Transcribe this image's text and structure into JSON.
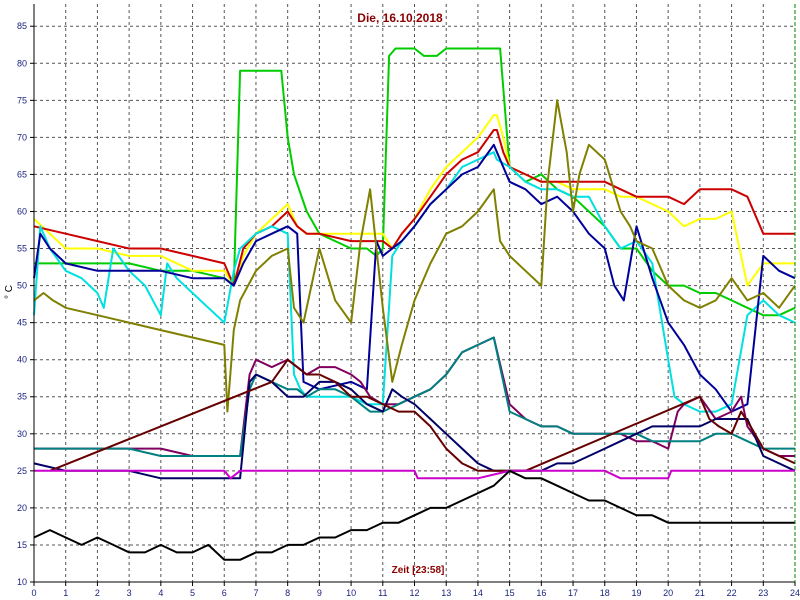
{
  "chart_data": {
    "type": "line",
    "title": "Die, 16.10.2018",
    "xlabel": "Zeit [23:58]",
    "ylabel": "° C",
    "xlim": [
      0,
      24
    ],
    "ylim": [
      10,
      88
    ],
    "xticks": [
      "0",
      "1",
      "2",
      "3",
      "4",
      "5",
      "6",
      "7",
      "8",
      "9",
      "10",
      "11",
      "12",
      "13",
      "14",
      "15",
      "16",
      "17",
      "18",
      "19",
      "20",
      "21",
      "22",
      "23",
      "24"
    ],
    "yticks": [
      "10",
      "15",
      "20",
      "25",
      "30",
      "35",
      "40",
      "45",
      "50",
      "55",
      "60",
      "65",
      "70",
      "75",
      "80",
      "85"
    ],
    "grid": true,
    "series": [
      {
        "color": "#00cc00",
        "x": [
          0,
          1,
          2,
          3,
          4,
          5,
          6,
          6.3,
          6.5,
          7,
          7.5,
          7.8,
          8,
          8.2,
          8.6,
          9,
          9.5,
          10,
          10.5,
          10.8,
          11,
          11.2,
          11.4,
          11.6,
          11.8,
          12,
          12.3,
          12.7,
          13,
          13.5,
          14,
          14.5,
          14.7,
          15,
          15.5,
          16,
          16.5,
          17,
          17.5,
          18,
          18.5,
          19,
          19.5,
          20,
          20.5,
          21,
          21.5,
          22,
          22.5,
          23,
          23.5,
          24
        ],
        "y": [
          53,
          53,
          53,
          53,
          52,
          52,
          51,
          50,
          79,
          79,
          79,
          79,
          70,
          65,
          60,
          57,
          56,
          55,
          55,
          54,
          55,
          81,
          82,
          82,
          82,
          82,
          81,
          81,
          82,
          82,
          82,
          82,
          82,
          66,
          64,
          65,
          63,
          62,
          60,
          58,
          55,
          55,
          52,
          50,
          50,
          49,
          49,
          48,
          47,
          46,
          46,
          47
        ]
      },
      {
        "color": "#ffff00",
        "x": [
          0,
          1,
          2,
          3,
          4,
          5,
          6,
          6.3,
          6.6,
          7,
          7.5,
          8,
          8.3,
          8.6,
          9,
          10,
          11,
          11.3,
          11.6,
          12,
          12.5,
          13,
          13.5,
          14,
          14.5,
          14.6,
          14.8,
          15,
          15.5,
          16,
          16.5,
          17,
          17.5,
          18,
          18.5,
          19,
          19.5,
          20,
          20.5,
          21,
          21.5,
          22,
          22.5,
          23,
          23.5,
          24
        ],
        "y": [
          59,
          55,
          55,
          54,
          54,
          52,
          52,
          50,
          54,
          57,
          59,
          61,
          58,
          57,
          57,
          57,
          57,
          55,
          57,
          59,
          63,
          66,
          68,
          70,
          73,
          73,
          70,
          66,
          65,
          64,
          64,
          63,
          63,
          63,
          62,
          62,
          61,
          60,
          58,
          59,
          59,
          60,
          50,
          53,
          53,
          53
        ]
      },
      {
        "color": "#cc0000",
        "x": [
          0,
          1,
          2,
          3,
          4,
          5,
          6,
          6.3,
          6.6,
          7,
          7.5,
          8,
          8.3,
          8.6,
          9,
          10,
          11,
          11.3,
          11.6,
          12,
          12.5,
          13,
          13.5,
          14,
          14.5,
          14.6,
          14.8,
          15,
          15.5,
          16,
          16.5,
          17,
          17.5,
          18,
          18.5,
          19,
          19.5,
          20,
          20.5,
          21,
          21.5,
          22,
          22.5,
          23,
          23.5,
          24
        ],
        "y": [
          58,
          57,
          56,
          55,
          55,
          54,
          53,
          50,
          55,
          57,
          58,
          60,
          58,
          57,
          57,
          56,
          56,
          55,
          57,
          59,
          62,
          65,
          67,
          68,
          71,
          71,
          68,
          66,
          65,
          64,
          64,
          64,
          64,
          64,
          63,
          62,
          62,
          62,
          61,
          63,
          63,
          63,
          62,
          57,
          57,
          57
        ]
      },
      {
        "color": "#00e0e0",
        "x": [
          0,
          0.2,
          0.5,
          1,
          1.5,
          2,
          2.2,
          2.5,
          3,
          3.5,
          4,
          4.2,
          4.5,
          5,
          5.5,
          6,
          6.3,
          6.5,
          7,
          7.5,
          8,
          8.2,
          8.4,
          8.6,
          9,
          10,
          10.5,
          11,
          11.3,
          11.6,
          12,
          12.5,
          13,
          13.5,
          14,
          14.5,
          14.6,
          15,
          15.5,
          16,
          16.5,
          17,
          17.5,
          18,
          18.5,
          19,
          19.5,
          20,
          20.2,
          20.5,
          21,
          21.5,
          22,
          22.5,
          23,
          23.5,
          24
        ],
        "y": [
          46,
          58,
          55,
          52,
          51,
          49,
          47,
          55,
          52,
          50,
          46,
          53,
          51,
          49,
          47,
          45,
          52,
          55,
          57,
          58,
          57,
          38,
          36,
          35,
          35,
          35,
          34,
          34,
          54,
          56,
          58,
          61,
          63,
          66,
          67,
          68,
          67,
          66,
          64,
          63,
          63,
          62,
          62,
          58,
          55,
          56,
          53,
          40,
          35,
          34,
          33,
          33,
          34,
          46,
          48,
          46,
          45
        ]
      },
      {
        "color": "#000099",
        "x": [
          0,
          0.2,
          0.5,
          1,
          2,
          3,
          4,
          5,
          6,
          6.3,
          6.6,
          7,
          7.5,
          8,
          8.3,
          8.5,
          9,
          10,
          10.5,
          10.8,
          11,
          11.3,
          11.6,
          12,
          12.5,
          13,
          13.5,
          14,
          14.5,
          15,
          15.5,
          16,
          16.5,
          17,
          17.5,
          18,
          18.3,
          18.6,
          19,
          19.5,
          20,
          20.5,
          21,
          21.5,
          22,
          22.5,
          23,
          23.5,
          24
        ],
        "y": [
          51,
          57,
          55,
          53,
          52,
          52,
          52,
          51,
          51,
          50,
          53,
          56,
          57,
          58,
          57,
          37,
          36,
          37,
          36,
          56,
          54,
          55,
          56,
          58,
          61,
          63,
          65,
          66,
          69,
          64,
          63,
          61,
          62,
          60,
          57,
          55,
          50,
          48,
          58,
          51,
          45,
          42,
          38,
          36,
          33,
          34,
          54,
          52,
          51
        ]
      },
      {
        "color": "#808000",
        "x": [
          0,
          0.3,
          0.6,
          1,
          2,
          3,
          4,
          5,
          6,
          6.1,
          6.3,
          6.5,
          7,
          7.5,
          8,
          8.2,
          8.5,
          9,
          9.5,
          10,
          10.3,
          10.6,
          11,
          11.3,
          11.6,
          12,
          12.5,
          13,
          13.5,
          14,
          14.5,
          14.7,
          15,
          15.5,
          16,
          16.2,
          16.5,
          16.8,
          17,
          17.2,
          17.5,
          18,
          18.5,
          18.8,
          19,
          19.5,
          20,
          20.5,
          21,
          21.5,
          22,
          22.5,
          23,
          23.5,
          24
        ],
        "y": [
          48,
          49,
          48,
          47,
          46,
          45,
          44,
          43,
          42,
          33,
          44,
          48,
          52,
          54,
          55,
          47,
          45,
          55,
          48,
          45,
          56,
          63,
          47,
          37,
          42,
          48,
          53,
          57,
          58,
          60,
          63,
          56,
          54,
          52,
          50,
          64,
          75,
          68,
          60,
          65,
          69,
          67,
          60,
          58,
          56,
          55,
          50,
          48,
          47,
          48,
          51,
          48,
          49,
          47,
          50
        ]
      },
      {
        "color": "#800060",
        "x": [
          0,
          1,
          2,
          3,
          4,
          5,
          6,
          6.5,
          6.8,
          7,
          7.5,
          8,
          8.3,
          8.6,
          9,
          9.5,
          10,
          10.3,
          10.6,
          11,
          11.5,
          12,
          12.5,
          13,
          13.5,
          14,
          14.5,
          15,
          15.5,
          16,
          16.5,
          17,
          17.5,
          18,
          18.5,
          19,
          19.5,
          20,
          20.3,
          20.5,
          21,
          21.5,
          22,
          22.3,
          22.5,
          23,
          23.5,
          24
        ],
        "y": [
          28,
          28,
          28,
          28,
          28,
          27,
          27,
          27,
          38,
          40,
          39,
          40,
          39,
          38,
          39,
          39,
          38,
          37,
          35,
          34,
          34,
          35,
          36,
          38,
          41,
          42,
          43,
          34,
          32,
          31,
          31,
          30,
          30,
          30,
          30,
          29,
          29,
          28,
          33,
          34,
          35,
          32,
          33,
          35,
          31,
          28,
          27,
          27
        ]
      },
      {
        "color": "#008080",
        "x": [
          0,
          1,
          2,
          3,
          4,
          5,
          6,
          6.5,
          6.8,
          7,
          7.5,
          8,
          8.3,
          8.6,
          9,
          9.5,
          10,
          10.3,
          10.6,
          11,
          11.5,
          12,
          12.5,
          13,
          13.5,
          14,
          14.5,
          15,
          15.5,
          16,
          16.5,
          17,
          17.5,
          18,
          18.5,
          19,
          19.5,
          20,
          20.5,
          21,
          21.5,
          22,
          22.5,
          23,
          23.5,
          24
        ],
        "y": [
          28,
          28,
          28,
          28,
          27,
          27,
          27,
          27,
          36,
          38,
          37,
          36,
          36,
          35,
          36,
          36,
          35,
          34,
          33,
          33,
          34,
          35,
          36,
          38,
          41,
          42,
          43,
          33,
          32,
          31,
          31,
          30,
          30,
          30,
          30,
          30,
          29,
          29,
          29,
          29,
          30,
          30,
          29,
          28,
          28,
          28
        ]
      },
      {
        "color": "#000066",
        "x": [
          0,
          1,
          2,
          3,
          4,
          5,
          6,
          6.5,
          6.8,
          7,
          7.5,
          8,
          8.5,
          9,
          9.5,
          10,
          10.5,
          11,
          11.3,
          11.6,
          12,
          12.5,
          13,
          13.5,
          14,
          14.5,
          15,
          15.5,
          16,
          16.5,
          17,
          17.5,
          18,
          18.5,
          19,
          19.5,
          20,
          20.5,
          21,
          21.5,
          22,
          22.5,
          23,
          23.5,
          24
        ],
        "y": [
          26,
          25,
          25,
          25,
          24,
          24,
          24,
          24,
          37,
          38,
          37,
          35,
          35,
          37,
          37,
          36,
          34,
          33,
          36,
          35,
          34,
          32,
          30,
          28,
          26,
          25,
          25,
          25,
          25,
          26,
          26,
          27,
          28,
          29,
          30,
          31,
          31,
          31,
          31,
          32,
          32,
          32,
          27,
          26,
          25
        ]
      },
      {
        "color": "#660000",
        "x": [
          0.5,
          7.5,
          8,
          8.3,
          8.6,
          9,
          9.5,
          10,
          10.5,
          11,
          11.5,
          12,
          12.5,
          13,
          13.5,
          14,
          14.5,
          15,
          15.5,
          21,
          21.3,
          21.6,
          22,
          22.3,
          22.6,
          23,
          23.5,
          24
        ],
        "y": [
          25,
          37,
          40,
          39,
          38,
          38,
          37,
          35,
          35,
          34,
          33,
          33,
          31,
          28,
          26,
          25,
          25,
          25,
          25,
          35,
          32,
          31,
          30,
          33,
          31,
          28,
          27,
          26
        ]
      },
      {
        "color": "#cc00cc",
        "x": [
          0,
          1,
          2,
          3,
          4,
          5,
          6,
          6.2,
          6.5,
          7,
          8,
          9,
          10,
          11,
          12,
          12.1,
          13,
          14,
          15,
          15.5,
          16,
          17,
          17.5,
          18,
          18.5,
          19,
          19.5,
          20,
          20.1,
          21,
          22,
          23,
          24
        ],
        "y": [
          25,
          25,
          25,
          25,
          25,
          25,
          25,
          24,
          25,
          25,
          25,
          25,
          25,
          25,
          25,
          24,
          24,
          24,
          25,
          25,
          25,
          25,
          25,
          25,
          24,
          24,
          24,
          24,
          25,
          25,
          25,
          25,
          25
        ]
      },
      {
        "color": "#000000",
        "x": [
          0,
          0.5,
          1,
          1.5,
          2,
          2.5,
          3,
          3.5,
          4,
          4.5,
          5,
          5.5,
          6,
          6.5,
          7,
          7.5,
          8,
          8.5,
          9,
          9.5,
          10,
          10.5,
          11,
          11.5,
          12,
          12.5,
          13,
          13.5,
          14,
          14.5,
          15,
          15.5,
          16,
          16.5,
          17,
          17.5,
          18,
          18.5,
          19,
          19.5,
          20,
          20.5,
          21,
          21.5,
          22,
          22.5,
          23,
          23.5,
          24
        ],
        "y": [
          16,
          17,
          16,
          15,
          16,
          15,
          14,
          14,
          15,
          14,
          14,
          15,
          13,
          13,
          14,
          14,
          15,
          15,
          16,
          16,
          17,
          17,
          18,
          18,
          19,
          20,
          20,
          21,
          22,
          23,
          25,
          24,
          24,
          23,
          22,
          21,
          21,
          20,
          19,
          19,
          18,
          18,
          18,
          18,
          18,
          18,
          18,
          18,
          18
        ]
      }
    ]
  }
}
